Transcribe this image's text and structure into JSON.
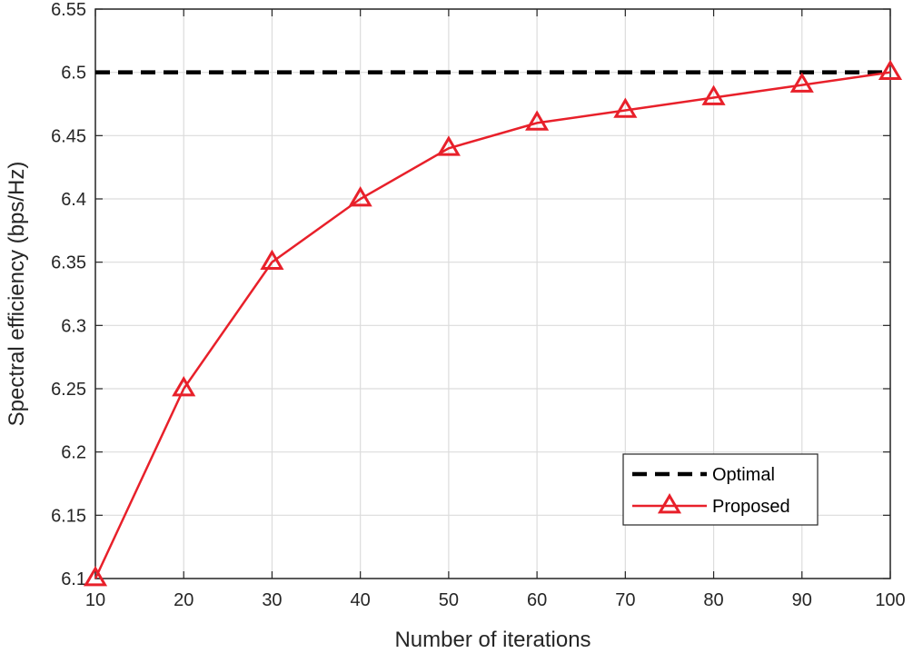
{
  "chart_data": {
    "type": "line",
    "title": "",
    "xlabel": "Number of iterations",
    "ylabel": "Spectral efficiency (bps/Hz)",
    "x": [
      10,
      20,
      30,
      40,
      50,
      60,
      70,
      80,
      90,
      100
    ],
    "xlim": [
      10,
      100
    ],
    "ylim": [
      6.1,
      6.55
    ],
    "xticks": [
      "10",
      "20",
      "30",
      "40",
      "50",
      "60",
      "70",
      "80",
      "90",
      "100"
    ],
    "yticks": [
      "6.1",
      "6.15",
      "6.2",
      "6.25",
      "6.3",
      "6.35",
      "6.4",
      "6.45",
      "6.5",
      "6.55"
    ],
    "grid": true,
    "legend_position": "bottom-right",
    "series": [
      {
        "name": "Optimal",
        "style": "dashed",
        "color": "#000000",
        "marker": "none",
        "values": [
          6.5,
          6.5,
          6.5,
          6.5,
          6.5,
          6.5,
          6.5,
          6.5,
          6.5,
          6.5
        ]
      },
      {
        "name": "Proposed",
        "style": "solid",
        "color": "#e8202a",
        "marker": "triangle",
        "values": [
          6.1,
          6.25,
          6.35,
          6.4,
          6.44,
          6.46,
          6.47,
          6.48,
          6.49,
          6.5
        ]
      }
    ]
  }
}
